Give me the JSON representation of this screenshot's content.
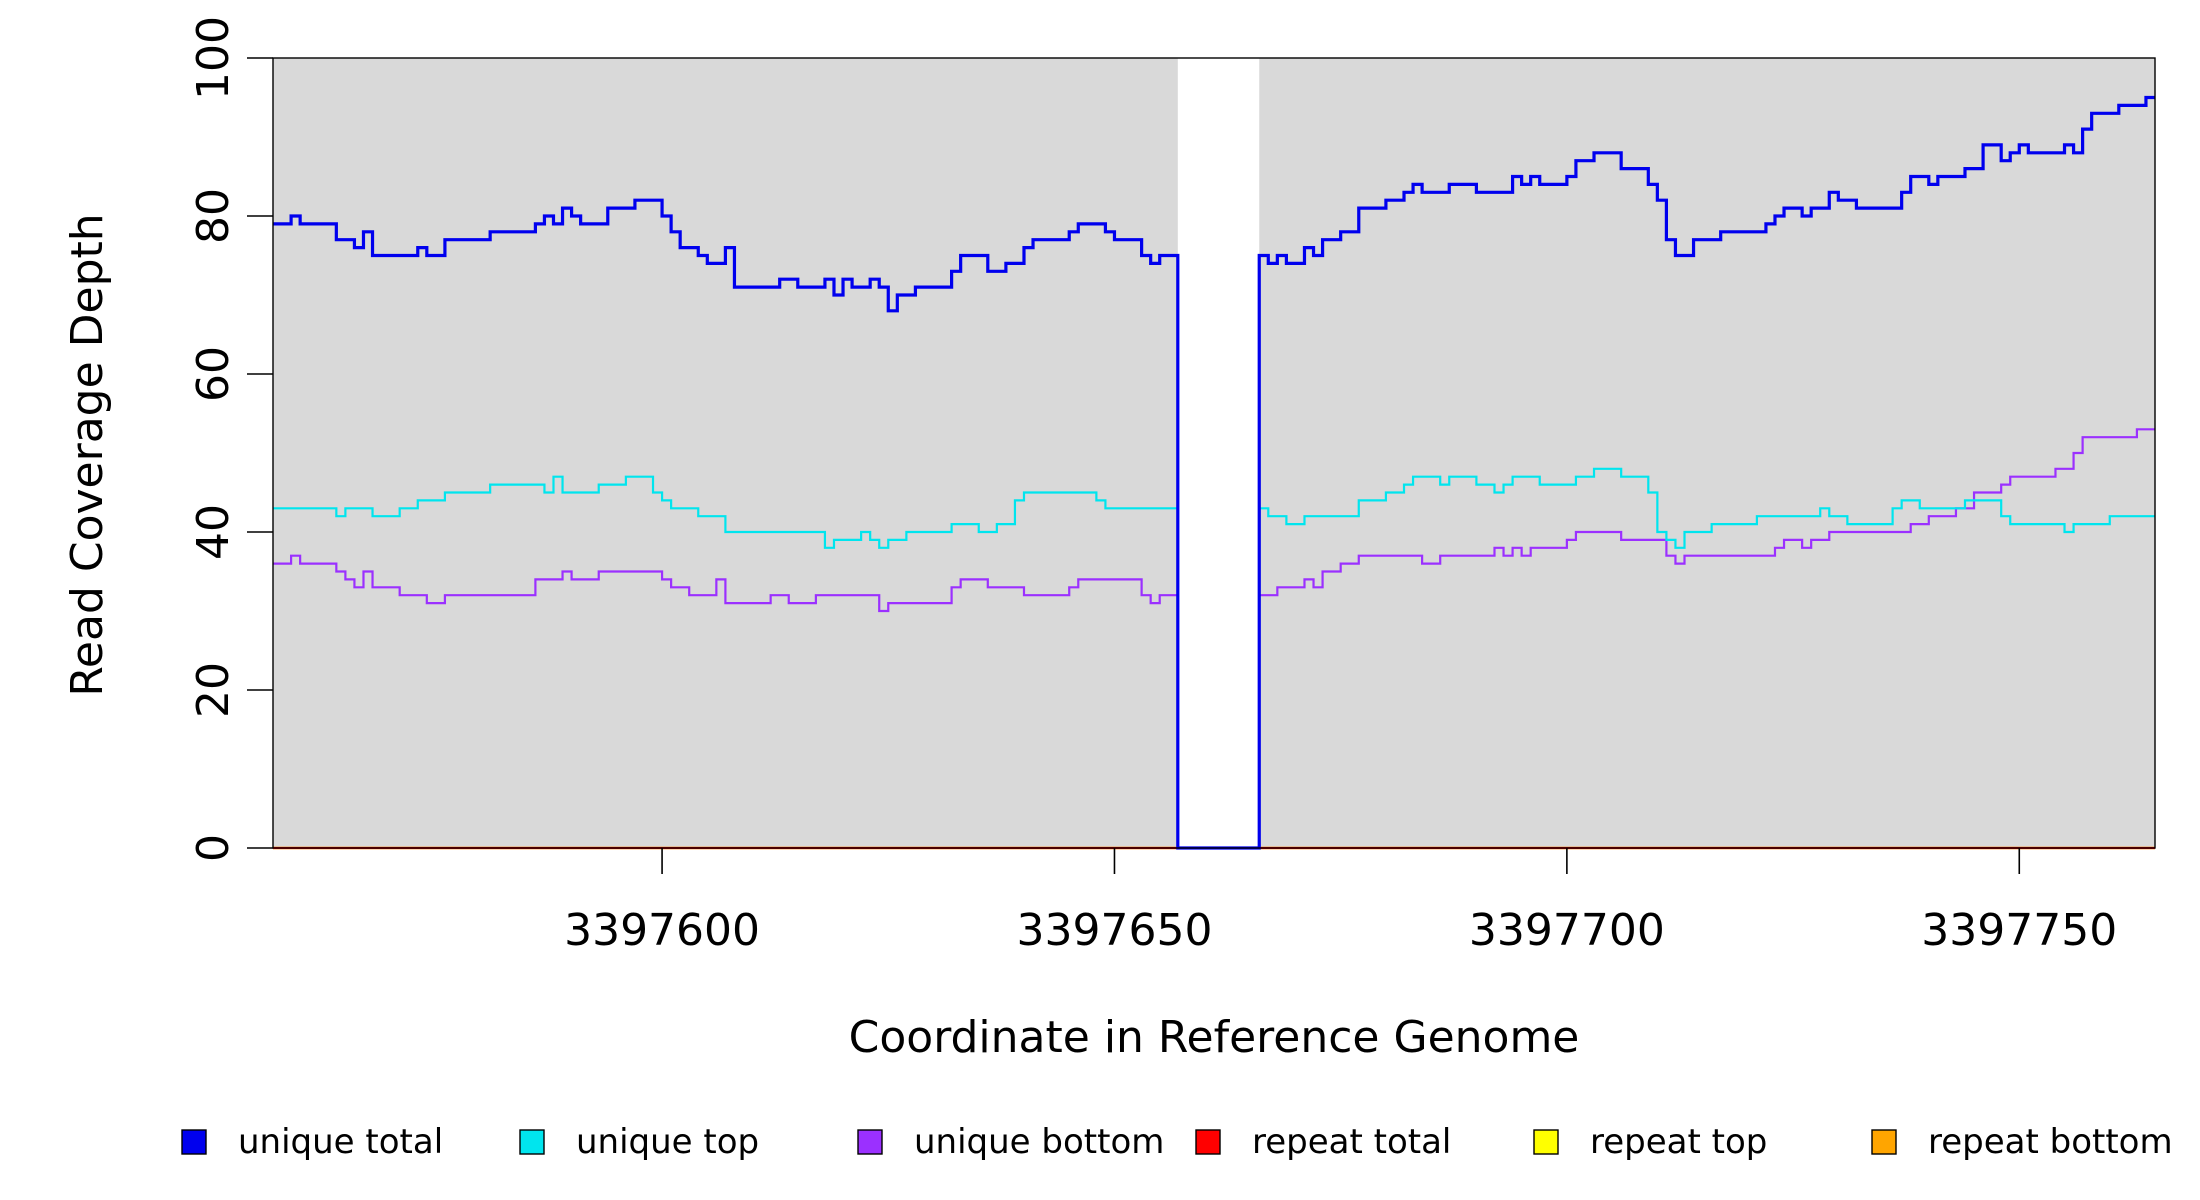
{
  "chart_data": {
    "type": "line",
    "step": true,
    "title": "",
    "xlabel": "Coordinate in Reference Genome",
    "ylabel": "Read Coverage Depth",
    "xlim": [
      3397557,
      3397765
    ],
    "ylim": [
      0,
      100
    ],
    "x_ticks": [
      3397600,
      3397650,
      3397700,
      3397750
    ],
    "y_ticks": [
      0,
      20,
      40,
      60,
      80,
      100
    ],
    "grid": false,
    "background_color": "#d9d9d9",
    "gap_region": [
      3397657,
      3397666
    ],
    "gap_color": "#ffffff",
    "legend_position": "bottom",
    "series": [
      {
        "name": "unique total",
        "color": "#0000ee",
        "points": [
          [
            3397557,
            79
          ],
          [
            3397559,
            80
          ],
          [
            3397560,
            79
          ],
          [
            3397564,
            77
          ],
          [
            3397566,
            76
          ],
          [
            3397567,
            78
          ],
          [
            3397568,
            75
          ],
          [
            3397573,
            76
          ],
          [
            3397574,
            75
          ],
          [
            3397576,
            77
          ],
          [
            3397581,
            78
          ],
          [
            3397586,
            79
          ],
          [
            3397587,
            80
          ],
          [
            3397588,
            79
          ],
          [
            3397589,
            81
          ],
          [
            3397590,
            80
          ],
          [
            3397591,
            79
          ],
          [
            3397594,
            81
          ],
          [
            3397597,
            82
          ],
          [
            3397600,
            80
          ],
          [
            3397601,
            78
          ],
          [
            3397602,
            76
          ],
          [
            3397604,
            75
          ],
          [
            3397605,
            74
          ],
          [
            3397607,
            76
          ],
          [
            3397608,
            71
          ],
          [
            3397613,
            72
          ],
          [
            3397615,
            71
          ],
          [
            3397618,
            72
          ],
          [
            3397619,
            70
          ],
          [
            3397620,
            72
          ],
          [
            3397621,
            71
          ],
          [
            3397623,
            72
          ],
          [
            3397624,
            71
          ],
          [
            3397625,
            68
          ],
          [
            3397626,
            70
          ],
          [
            3397628,
            71
          ],
          [
            3397632,
            73
          ],
          [
            3397633,
            75
          ],
          [
            3397636,
            73
          ],
          [
            3397638,
            74
          ],
          [
            3397640,
            76
          ],
          [
            3397641,
            77
          ],
          [
            3397645,
            78
          ],
          [
            3397646,
            79
          ],
          [
            3397649,
            78
          ],
          [
            3397650,
            77
          ],
          [
            3397653,
            75
          ],
          [
            3397654,
            74
          ],
          [
            3397655,
            75
          ],
          [
            3397657,
            0
          ],
          [
            3397666,
            75
          ],
          [
            3397667,
            74
          ],
          [
            3397668,
            75
          ],
          [
            3397669,
            74
          ],
          [
            3397671,
            76
          ],
          [
            3397672,
            75
          ],
          [
            3397673,
            77
          ],
          [
            3397675,
            78
          ],
          [
            3397677,
            81
          ],
          [
            3397680,
            82
          ],
          [
            3397682,
            83
          ],
          [
            3397683,
            84
          ],
          [
            3397684,
            83
          ],
          [
            3397687,
            84
          ],
          [
            3397690,
            83
          ],
          [
            3397694,
            85
          ],
          [
            3397695,
            84
          ],
          [
            3397696,
            85
          ],
          [
            3397697,
            84
          ],
          [
            3397700,
            85
          ],
          [
            3397701,
            87
          ],
          [
            3397703,
            88
          ],
          [
            3397706,
            86
          ],
          [
            3397709,
            84
          ],
          [
            3397710,
            82
          ],
          [
            3397711,
            77
          ],
          [
            3397712,
            75
          ],
          [
            3397714,
            77
          ],
          [
            3397717,
            78
          ],
          [
            3397722,
            79
          ],
          [
            3397723,
            80
          ],
          [
            3397724,
            81
          ],
          [
            3397726,
            80
          ],
          [
            3397727,
            81
          ],
          [
            3397729,
            83
          ],
          [
            3397730,
            82
          ],
          [
            3397732,
            81
          ],
          [
            3397737,
            83
          ],
          [
            3397738,
            85
          ],
          [
            3397740,
            84
          ],
          [
            3397741,
            85
          ],
          [
            3397744,
            86
          ],
          [
            3397746,
            89
          ],
          [
            3397748,
            87
          ],
          [
            3397749,
            88
          ],
          [
            3397750,
            89
          ],
          [
            3397751,
            88
          ],
          [
            3397755,
            89
          ],
          [
            3397756,
            88
          ],
          [
            3397757,
            91
          ],
          [
            3397758,
            93
          ],
          [
            3397761,
            94
          ],
          [
            3397764,
            95
          ],
          [
            3397765,
            95
          ]
        ]
      },
      {
        "name": "unique top",
        "color": "#00e5ee",
        "points": [
          [
            3397557,
            43
          ],
          [
            3397564,
            42
          ],
          [
            3397565,
            43
          ],
          [
            3397568,
            42
          ],
          [
            3397571,
            43
          ],
          [
            3397573,
            44
          ],
          [
            3397576,
            45
          ],
          [
            3397581,
            46
          ],
          [
            3397587,
            45
          ],
          [
            3397588,
            47
          ],
          [
            3397589,
            45
          ],
          [
            3397593,
            46
          ],
          [
            3397596,
            47
          ],
          [
            3397599,
            45
          ],
          [
            3397600,
            44
          ],
          [
            3397601,
            43
          ],
          [
            3397604,
            42
          ],
          [
            3397607,
            40
          ],
          [
            3397618,
            38
          ],
          [
            3397619,
            39
          ],
          [
            3397622,
            40
          ],
          [
            3397623,
            39
          ],
          [
            3397624,
            38
          ],
          [
            3397625,
            39
          ],
          [
            3397627,
            40
          ],
          [
            3397632,
            41
          ],
          [
            3397635,
            40
          ],
          [
            3397637,
            41
          ],
          [
            3397639,
            44
          ],
          [
            3397640,
            45
          ],
          [
            3397648,
            44
          ],
          [
            3397649,
            43
          ],
          [
            3397657,
            0
          ],
          [
            3397666,
            43
          ],
          [
            3397667,
            42
          ],
          [
            3397669,
            41
          ],
          [
            3397671,
            42
          ],
          [
            3397677,
            44
          ],
          [
            3397680,
            45
          ],
          [
            3397682,
            46
          ],
          [
            3397683,
            47
          ],
          [
            3397686,
            46
          ],
          [
            3397687,
            47
          ],
          [
            3397690,
            46
          ],
          [
            3397692,
            45
          ],
          [
            3397693,
            46
          ],
          [
            3397694,
            47
          ],
          [
            3397697,
            46
          ],
          [
            3397701,
            47
          ],
          [
            3397703,
            48
          ],
          [
            3397706,
            47
          ],
          [
            3397709,
            45
          ],
          [
            3397710,
            40
          ],
          [
            3397711,
            39
          ],
          [
            3397712,
            38
          ],
          [
            3397713,
            40
          ],
          [
            3397716,
            41
          ],
          [
            3397721,
            42
          ],
          [
            3397728,
            43
          ],
          [
            3397729,
            42
          ],
          [
            3397731,
            41
          ],
          [
            3397736,
            43
          ],
          [
            3397737,
            44
          ],
          [
            3397739,
            43
          ],
          [
            3397744,
            44
          ],
          [
            3397748,
            42
          ],
          [
            3397749,
            41
          ],
          [
            3397755,
            40
          ],
          [
            3397756,
            41
          ],
          [
            3397760,
            42
          ],
          [
            3397765,
            42
          ]
        ]
      },
      {
        "name": "unique bottom",
        "color": "#9b30ff",
        "points": [
          [
            3397557,
            36
          ],
          [
            3397559,
            37
          ],
          [
            3397560,
            36
          ],
          [
            3397564,
            35
          ],
          [
            3397565,
            34
          ],
          [
            3397566,
            33
          ],
          [
            3397567,
            35
          ],
          [
            3397568,
            33
          ],
          [
            3397571,
            32
          ],
          [
            3397574,
            31
          ],
          [
            3397576,
            32
          ],
          [
            3397586,
            34
          ],
          [
            3397589,
            35
          ],
          [
            3397590,
            34
          ],
          [
            3397593,
            35
          ],
          [
            3397600,
            34
          ],
          [
            3397601,
            33
          ],
          [
            3397603,
            32
          ],
          [
            3397606,
            34
          ],
          [
            3397607,
            31
          ],
          [
            3397612,
            32
          ],
          [
            3397614,
            31
          ],
          [
            3397617,
            32
          ],
          [
            3397624,
            30
          ],
          [
            3397625,
            31
          ],
          [
            3397632,
            33
          ],
          [
            3397633,
            34
          ],
          [
            3397636,
            33
          ],
          [
            3397640,
            32
          ],
          [
            3397645,
            33
          ],
          [
            3397646,
            34
          ],
          [
            3397653,
            32
          ],
          [
            3397654,
            31
          ],
          [
            3397655,
            32
          ],
          [
            3397657,
            0
          ],
          [
            3397666,
            32
          ],
          [
            3397668,
            33
          ],
          [
            3397671,
            34
          ],
          [
            3397672,
            33
          ],
          [
            3397673,
            35
          ],
          [
            3397675,
            36
          ],
          [
            3397677,
            37
          ],
          [
            3397684,
            36
          ],
          [
            3397686,
            37
          ],
          [
            3397692,
            38
          ],
          [
            3397693,
            37
          ],
          [
            3397694,
            38
          ],
          [
            3397695,
            37
          ],
          [
            3397696,
            38
          ],
          [
            3397700,
            39
          ],
          [
            3397701,
            40
          ],
          [
            3397706,
            39
          ],
          [
            3397711,
            37
          ],
          [
            3397712,
            36
          ],
          [
            3397713,
            37
          ],
          [
            3397723,
            38
          ],
          [
            3397724,
            39
          ],
          [
            3397726,
            38
          ],
          [
            3397727,
            39
          ],
          [
            3397729,
            40
          ],
          [
            3397738,
            41
          ],
          [
            3397740,
            42
          ],
          [
            3397743,
            43
          ],
          [
            3397745,
            45
          ],
          [
            3397748,
            46
          ],
          [
            3397749,
            47
          ],
          [
            3397754,
            48
          ],
          [
            3397756,
            50
          ],
          [
            3397757,
            52
          ],
          [
            3397763,
            53
          ],
          [
            3397765,
            53
          ]
        ]
      },
      {
        "name": "repeat total",
        "color": "#ff0000",
        "points": [
          [
            3397557,
            0
          ],
          [
            3397765,
            0
          ]
        ]
      },
      {
        "name": "repeat top",
        "color": "#ffff00",
        "points": [
          [
            3397557,
            0
          ],
          [
            3397765,
            0
          ]
        ]
      },
      {
        "name": "repeat bottom",
        "color": "#ffa500",
        "points": [
          [
            3397557,
            0
          ],
          [
            3397765,
            0
          ]
        ]
      }
    ]
  }
}
